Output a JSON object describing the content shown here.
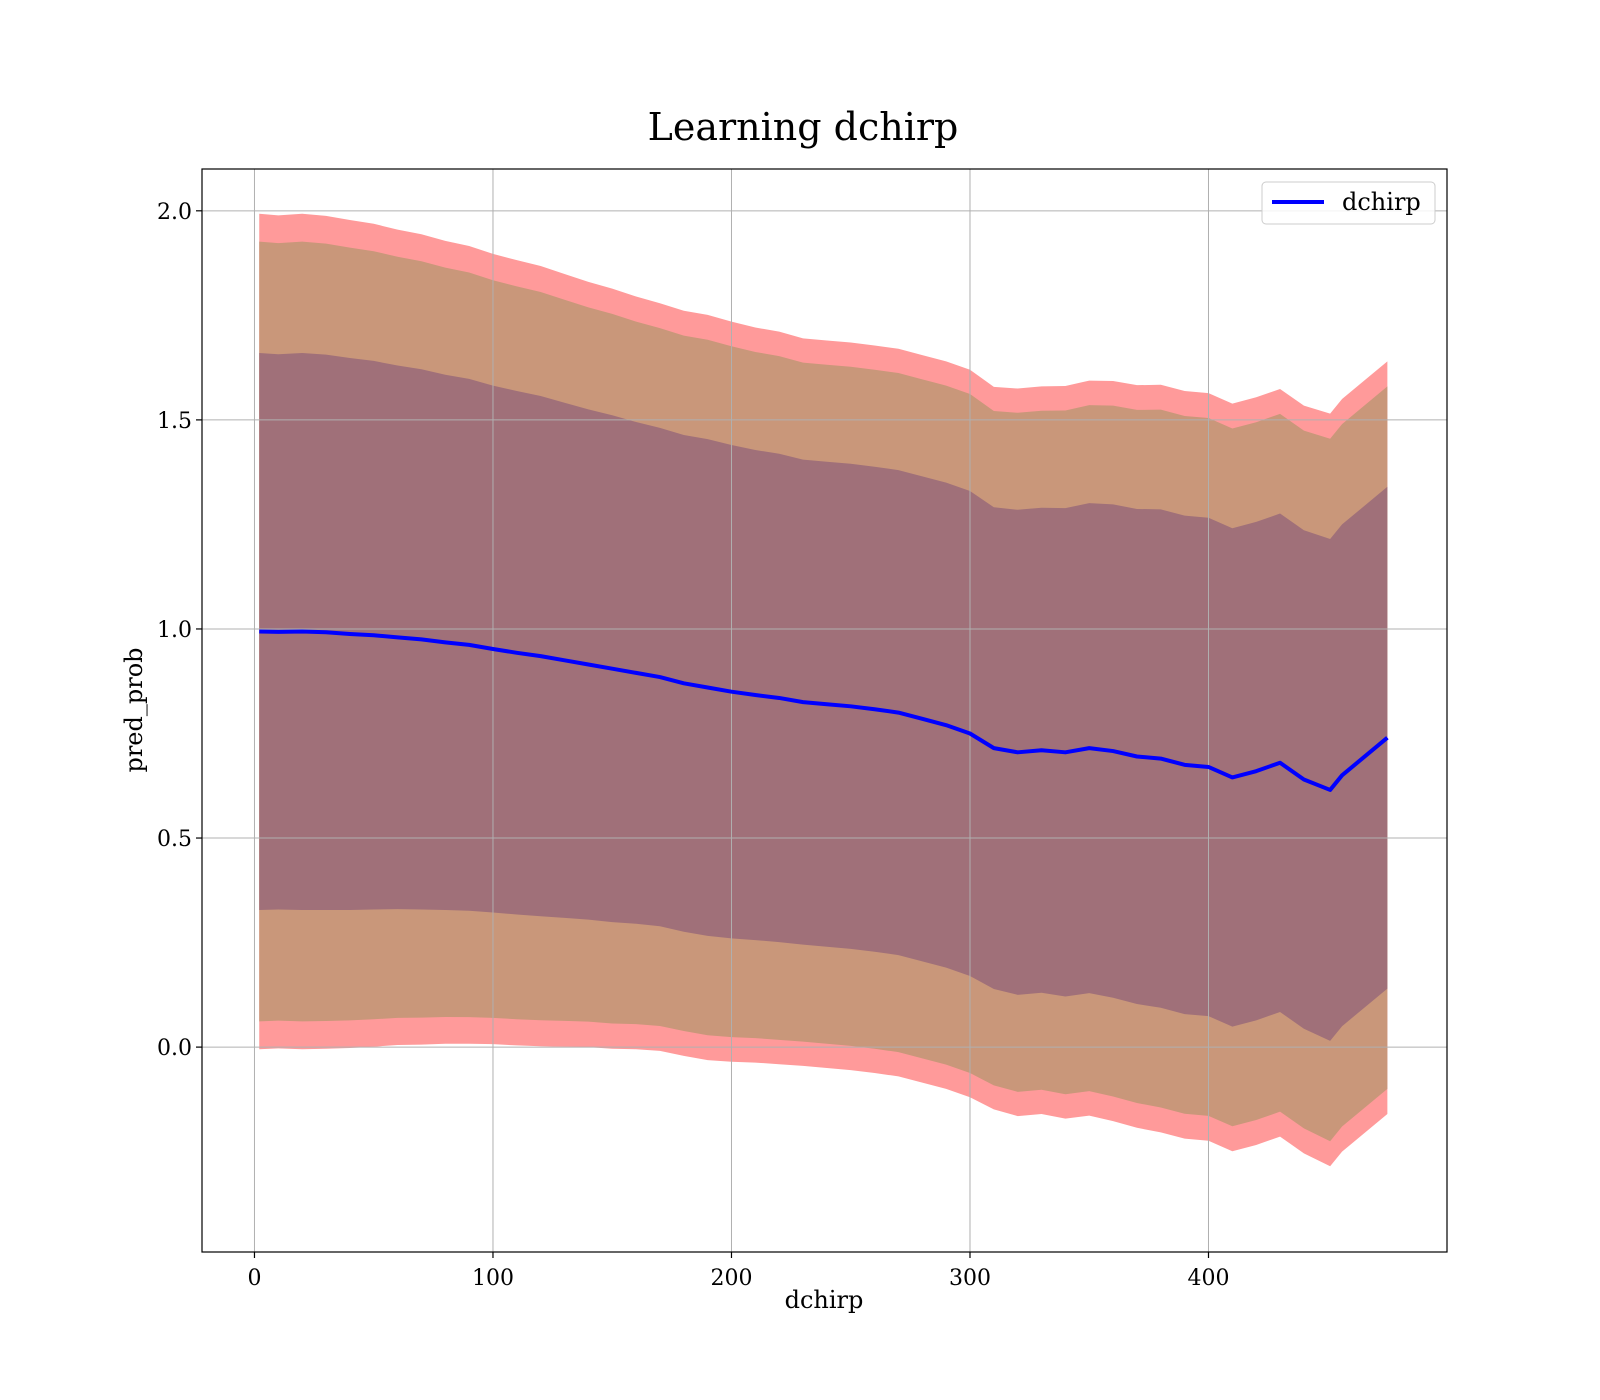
{
  "chart_data": {
    "type": "line",
    "title": "Learning dchirp",
    "xlabel": "dchirp",
    "ylabel": "pred_prob",
    "xlim": [
      -22,
      500
    ],
    "ylim": [
      -0.49,
      2.1
    ],
    "xticks": [
      0,
      100,
      200,
      300,
      400
    ],
    "yticks": [
      0.0,
      0.5,
      1.0,
      1.5,
      2.0
    ],
    "xtick_labels": [
      "0",
      "100",
      "200",
      "300",
      "400"
    ],
    "ytick_labels": [
      "0.0",
      "0.5",
      "1.0",
      "1.5",
      "2.0"
    ],
    "grid": true,
    "legend": {
      "position": "top-right",
      "entries": [
        "dchirp"
      ]
    },
    "colors": {
      "line": "#0000ff",
      "band_3sigma": "#ff9a9a",
      "band_2sigma": "#c9977a",
      "band_1sigma": "#a07079",
      "grid": "#b0b0b0"
    },
    "series": [
      {
        "name": "dchirp",
        "x": [
          2,
          10,
          20,
          30,
          40,
          50,
          60,
          70,
          80,
          90,
          100,
          110,
          120,
          130,
          140,
          150,
          160,
          170,
          180,
          190,
          200,
          210,
          220,
          230,
          240,
          250,
          260,
          270,
          280,
          290,
          300,
          310,
          320,
          330,
          340,
          350,
          360,
          370,
          380,
          390,
          400,
          410,
          420,
          430,
          440,
          451,
          456,
          475
        ],
        "y": [
          0.994,
          0.993,
          0.994,
          0.992,
          0.988,
          0.985,
          0.98,
          0.975,
          0.968,
          0.962,
          0.952,
          0.943,
          0.935,
          0.925,
          0.915,
          0.905,
          0.895,
          0.885,
          0.87,
          0.86,
          0.85,
          0.842,
          0.835,
          0.825,
          0.82,
          0.815,
          0.808,
          0.8,
          0.785,
          0.77,
          0.75,
          0.715,
          0.705,
          0.71,
          0.705,
          0.715,
          0.708,
          0.695,
          0.69,
          0.675,
          0.67,
          0.645,
          0.66,
          0.68,
          0.64,
          0.615,
          0.65,
          0.74
        ],
        "std": [
          0.333,
          0.332,
          0.333,
          0.332,
          0.33,
          0.328,
          0.325,
          0.323,
          0.32,
          0.318,
          0.315,
          0.313,
          0.311,
          0.308,
          0.305,
          0.303,
          0.3,
          0.298,
          0.297,
          0.297,
          0.295,
          0.293,
          0.292,
          0.29,
          0.29,
          0.29,
          0.29,
          0.29,
          0.29,
          0.29,
          0.29,
          0.288,
          0.29,
          0.29,
          0.292,
          0.293,
          0.295,
          0.296,
          0.298,
          0.298,
          0.298,
          0.298,
          0.298,
          0.298,
          0.298,
          0.3,
          0.3,
          0.3
        ]
      }
    ]
  }
}
